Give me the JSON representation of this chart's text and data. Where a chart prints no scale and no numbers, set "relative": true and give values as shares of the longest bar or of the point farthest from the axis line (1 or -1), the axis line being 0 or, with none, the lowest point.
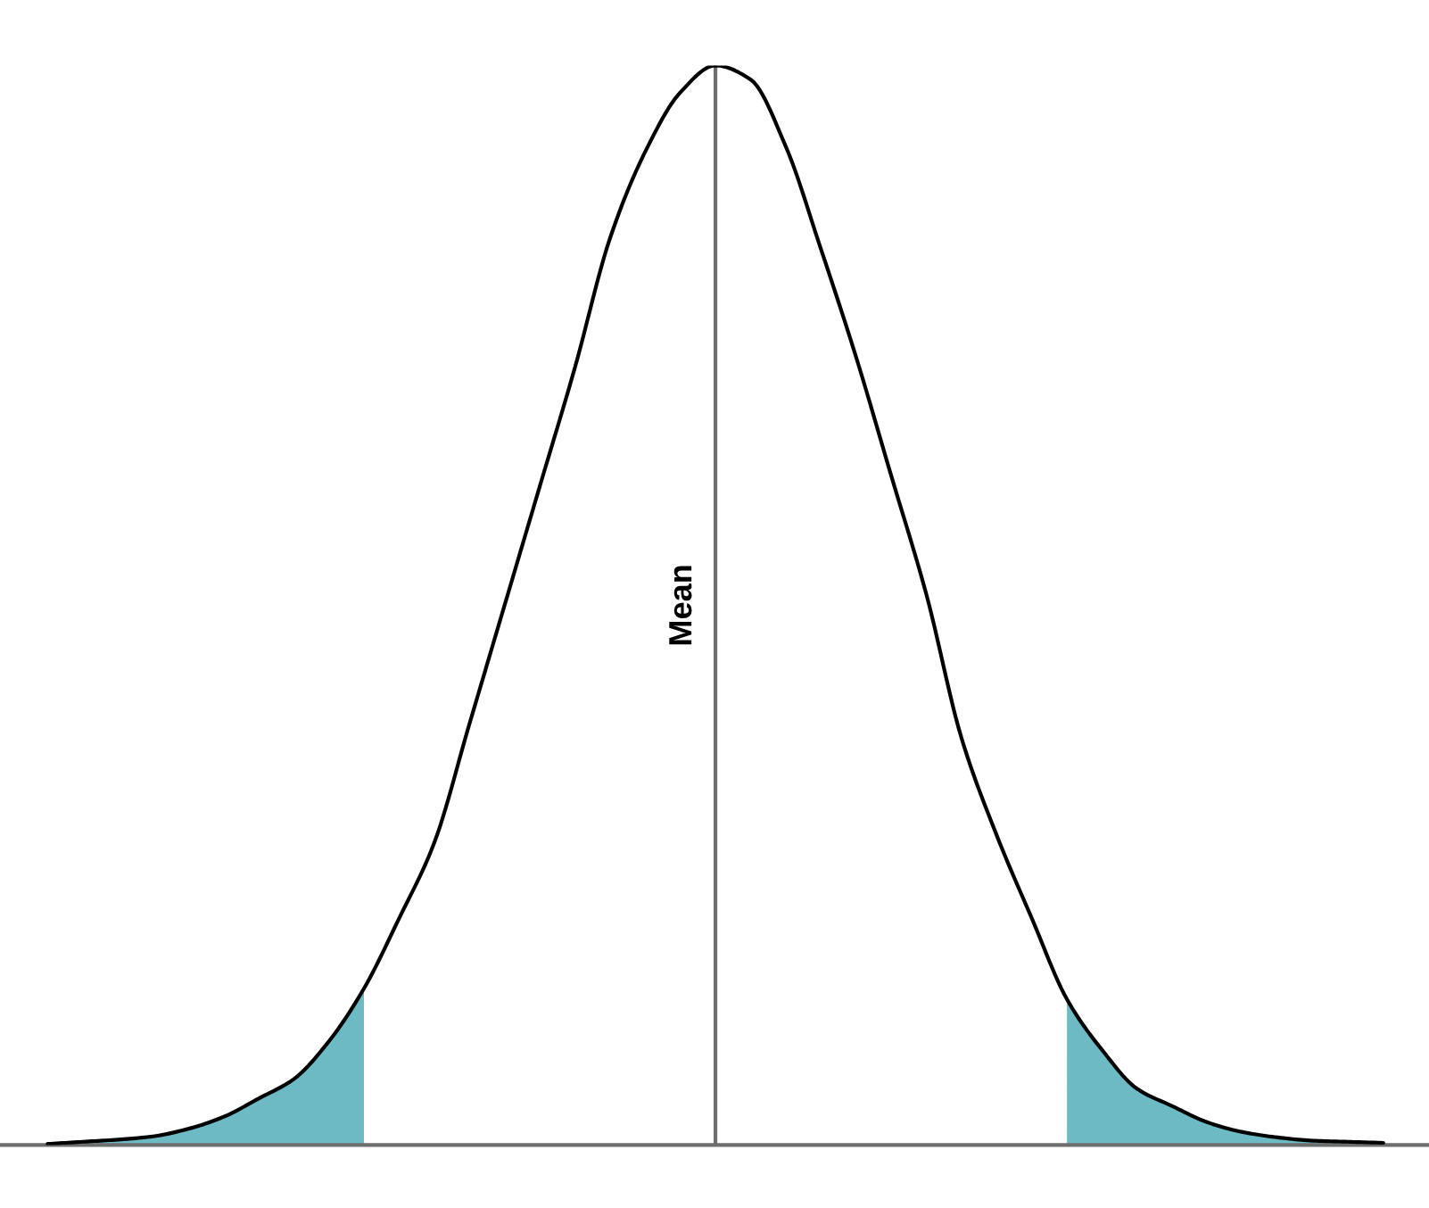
{
  "chart_data": {
    "type": "line",
    "relative": true,
    "categories": [
      null,
      null,
      null,
      null,
      null,
      null,
      null,
      null,
      null,
      null,
      null,
      null,
      null,
      null,
      null,
      null,
      null,
      null,
      null,
      null,
      null,
      null,
      null,
      null,
      null,
      null,
      null,
      null,
      null,
      null,
      null,
      null,
      null,
      null,
      null,
      null,
      null,
      null,
      null
    ],
    "series": [
      {
        "type": "area",
        "color": "#6dbac4",
        "values": [
          0.001,
          0.003,
          0.005,
          0.008,
          0.015,
          0.026,
          0.043,
          0.061,
          0.096,
          0.145,
          null,
          null,
          null,
          null,
          null,
          null,
          null,
          null,
          null,
          null,
          null,
          null,
          null,
          null,
          null,
          null,
          null,
          null,
          null,
          null,
          null,
          null,
          null,
          null,
          null,
          null,
          null,
          null,
          null
        ]
      },
      {
        "type": "area",
        "color": "#6dbac4",
        "values": [
          null,
          null,
          null,
          null,
          null,
          null,
          null,
          null,
          null,
          null,
          null,
          null,
          null,
          null,
          null,
          null,
          null,
          null,
          null,
          null,
          null,
          null,
          null,
          null,
          null,
          null,
          null,
          null,
          null,
          0.135,
          0.088,
          0.052,
          0.036,
          0.021,
          0.012,
          0.007,
          0.004,
          0.003,
          0.002
        ]
      },
      {
        "color": "#000000",
        "values": [
          0.001,
          0.003,
          0.005,
          0.008,
          0.015,
          0.026,
          0.043,
          0.061,
          0.096,
          0.145,
          0.21,
          0.28,
          0.39,
          0.5,
          0.61,
          0.72,
          0.84,
          0.92,
          0.975,
          1.0,
          0.987,
          0.925,
          0.83,
          0.73,
          0.62,
          0.51,
          0.377,
          0.287,
          0.21,
          0.135,
          0.088,
          0.052,
          0.036,
          0.021,
          0.012,
          0.007,
          0.004,
          0.003,
          0.002
        ]
      }
    ],
    "annotations": [
      "Mean"
    ],
    "marker": "none",
    "line_style": "solid"
  }
}
